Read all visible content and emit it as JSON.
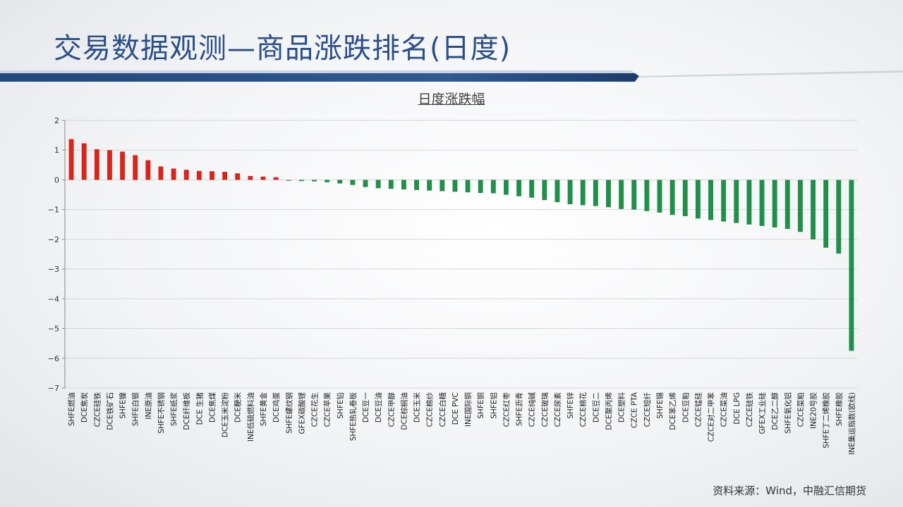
{
  "slide": {
    "title": "交易数据观测—商品涨跌排名(日度)",
    "source": "资料来源：Wind，中融汇信期货"
  },
  "colors": {
    "title": "#2a4f86",
    "rise": "#d9241c",
    "fall": "#1f8f4a",
    "band_blue": "#23487a"
  },
  "chart_data": {
    "type": "bar",
    "title": "日度涨跌幅",
    "xlabel": "",
    "ylabel": "",
    "ylim": [
      -7,
      2
    ],
    "yticks": [
      2,
      1,
      0,
      -1,
      -2,
      -3,
      -4,
      -5,
      -6,
      -7
    ],
    "grid": true,
    "legend": "none",
    "categories": [
      "SHFE燃油",
      "DCE焦炭",
      "CZCE硅铁",
      "DCE铁矿石",
      "SHFE镍",
      "SHFE白银",
      "INE原油",
      "SHFE不锈钢",
      "SHFE纸浆",
      "DCE纤维板",
      "DCE 生猪",
      "DCE焦煤",
      "DCE玉米淀粉",
      "DCE粳米",
      "INE低硫燃料油",
      "SHFE黄金",
      "DCE鸡蛋",
      "SHFE螺纹钢",
      "GFEX碳酸锂",
      "CZCE花生",
      "CZCE苹果",
      "SHFE铅",
      "SHFE热轧卷板",
      "DCE豆一",
      "DCE豆油",
      "CZCE甲醇",
      "DCE棕榈油",
      "DCE玉米",
      "CZCE棉纱",
      "CZCE白糖",
      "DCE PVC",
      "INE国际铜",
      "SHFE铜",
      "SHFE铝",
      "CZCE红枣",
      "SHFE沥青",
      "CZCE纯碱",
      "CZCE玻璃",
      "CZCE尿素",
      "SHFE锌",
      "CZCE棉花",
      "DCE豆二",
      "DCE聚丙烯",
      "DCE塑料",
      "CZCE PTA",
      "CZCE短纤",
      "SHFE锡",
      "DCE苯乙烯",
      "DCE豆粕",
      "CZCE锰硅",
      "CZCE对二甲苯",
      "CZCE菜油",
      "DCE LPG",
      "CZCE硅铁",
      "GFEX工业硅",
      "DCE乙二醇",
      "SHFE氧化铝",
      "CZCE菜粕",
      "INE20号胶",
      "SHFE丁二烯橡胶",
      "SHFE橡胶",
      "INE集运指数(欧线)"
    ],
    "values": [
      1.37,
      1.23,
      1.03,
      1.0,
      0.95,
      0.83,
      0.66,
      0.45,
      0.38,
      0.34,
      0.3,
      0.29,
      0.27,
      0.22,
      0.13,
      0.11,
      0.09,
      0.0,
      -0.04,
      -0.05,
      -0.08,
      -0.12,
      -0.17,
      -0.24,
      -0.28,
      -0.3,
      -0.32,
      -0.34,
      -0.36,
      -0.38,
      -0.4,
      -0.42,
      -0.44,
      -0.45,
      -0.5,
      -0.55,
      -0.6,
      -0.68,
      -0.75,
      -0.82,
      -0.85,
      -0.88,
      -0.92,
      -0.98,
      -1.0,
      -1.05,
      -1.1,
      -1.18,
      -1.22,
      -1.3,
      -1.35,
      -1.4,
      -1.45,
      -1.5,
      -1.55,
      -1.6,
      -1.65,
      -1.75,
      -2.0,
      -2.28,
      -2.48,
      -5.75
    ]
  }
}
